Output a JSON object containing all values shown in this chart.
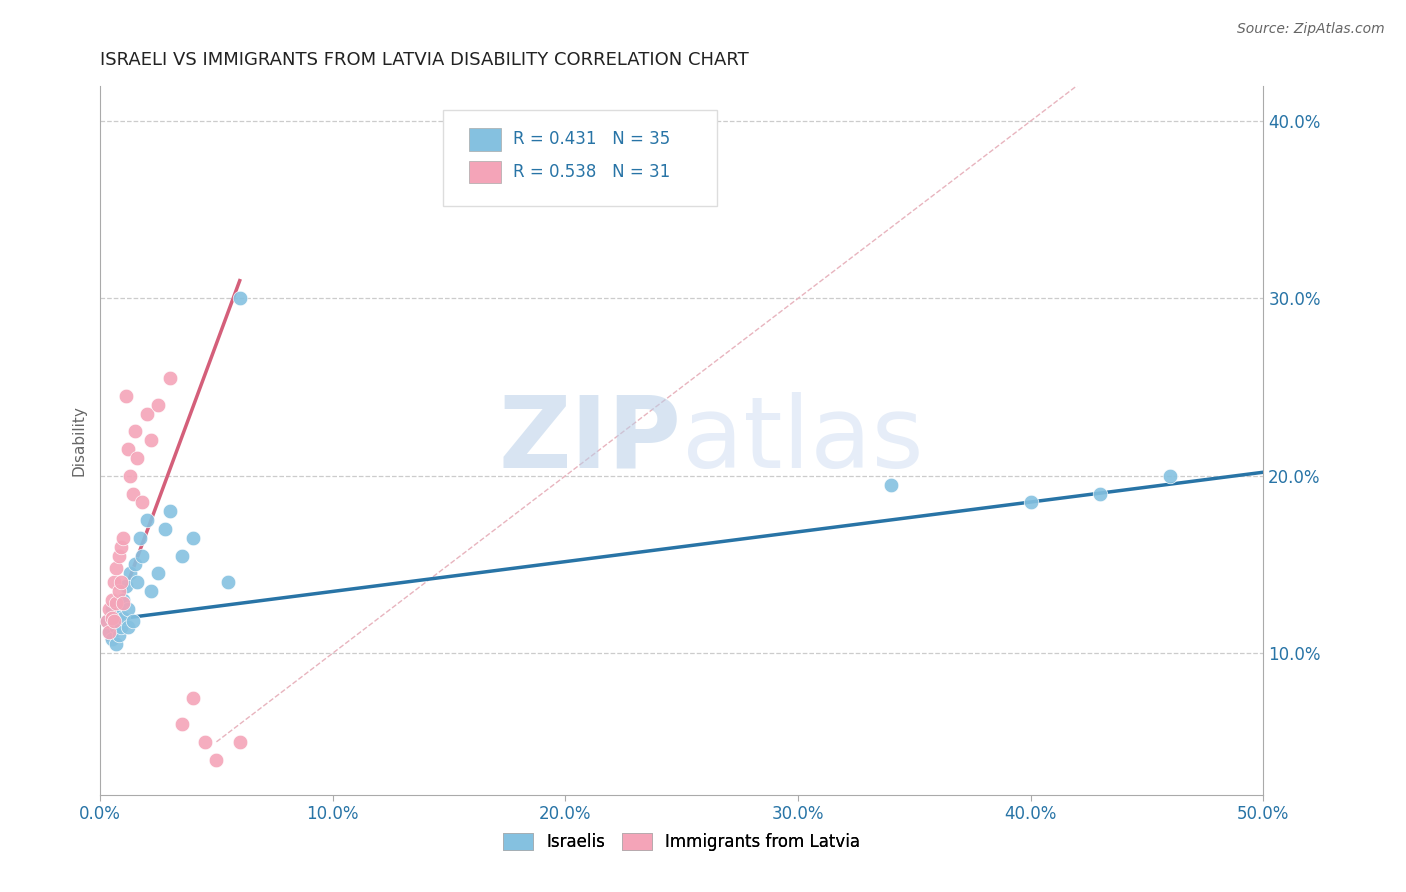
{
  "title": "ISRAELI VS IMMIGRANTS FROM LATVIA DISABILITY CORRELATION CHART",
  "source": "Source: ZipAtlas.com",
  "xlim": [
    0.0,
    0.5
  ],
  "ylim": [
    0.02,
    0.42
  ],
  "blue_label": "Israelis",
  "pink_label": "Immigrants from Latvia",
  "legend_blue_r": "R = 0.431",
  "legend_blue_n": "N = 35",
  "legend_pink_r": "R = 0.538",
  "legend_pink_n": "N = 31",
  "blue_color": "#85c1e0",
  "pink_color": "#f4a4b8",
  "blue_line_color": "#2874a6",
  "pink_line_color": "#d45f7a",
  "watermark_zip": "ZIP",
  "watermark_atlas": "atlas",
  "title_fontsize": 13,
  "axis_label_color": "#2874a6",
  "blue_dots_x": [
    0.003,
    0.004,
    0.005,
    0.005,
    0.006,
    0.007,
    0.007,
    0.008,
    0.008,
    0.009,
    0.009,
    0.01,
    0.01,
    0.011,
    0.012,
    0.012,
    0.013,
    0.014,
    0.015,
    0.016,
    0.017,
    0.018,
    0.02,
    0.022,
    0.025,
    0.028,
    0.03,
    0.035,
    0.04,
    0.055,
    0.06,
    0.34,
    0.4,
    0.43,
    0.46
  ],
  "blue_dots_y": [
    0.118,
    0.112,
    0.125,
    0.108,
    0.12,
    0.115,
    0.105,
    0.122,
    0.11,
    0.128,
    0.115,
    0.13,
    0.12,
    0.138,
    0.125,
    0.115,
    0.145,
    0.118,
    0.15,
    0.14,
    0.165,
    0.155,
    0.175,
    0.135,
    0.145,
    0.17,
    0.18,
    0.155,
    0.165,
    0.14,
    0.3,
    0.195,
    0.185,
    0.19,
    0.2
  ],
  "pink_dots_x": [
    0.003,
    0.004,
    0.004,
    0.005,
    0.005,
    0.006,
    0.006,
    0.007,
    0.007,
    0.008,
    0.008,
    0.009,
    0.009,
    0.01,
    0.01,
    0.011,
    0.012,
    0.013,
    0.014,
    0.015,
    0.016,
    0.018,
    0.02,
    0.022,
    0.025,
    0.03,
    0.035,
    0.04,
    0.045,
    0.05,
    0.06
  ],
  "pink_dots_y": [
    0.118,
    0.125,
    0.112,
    0.13,
    0.12,
    0.14,
    0.118,
    0.148,
    0.128,
    0.155,
    0.135,
    0.16,
    0.14,
    0.165,
    0.128,
    0.245,
    0.215,
    0.2,
    0.19,
    0.225,
    0.21,
    0.185,
    0.235,
    0.22,
    0.24,
    0.255,
    0.06,
    0.075,
    0.05,
    0.04,
    0.05
  ],
  "blue_trend_x": [
    0.0,
    0.5
  ],
  "blue_trend_y": [
    0.118,
    0.202
  ],
  "pink_trend_x": [
    0.003,
    0.06
  ],
  "pink_trend_y": [
    0.108,
    0.31
  ],
  "diag_line_x": [
    0.05,
    0.42
  ],
  "diag_line_y": [
    0.05,
    0.42
  ]
}
